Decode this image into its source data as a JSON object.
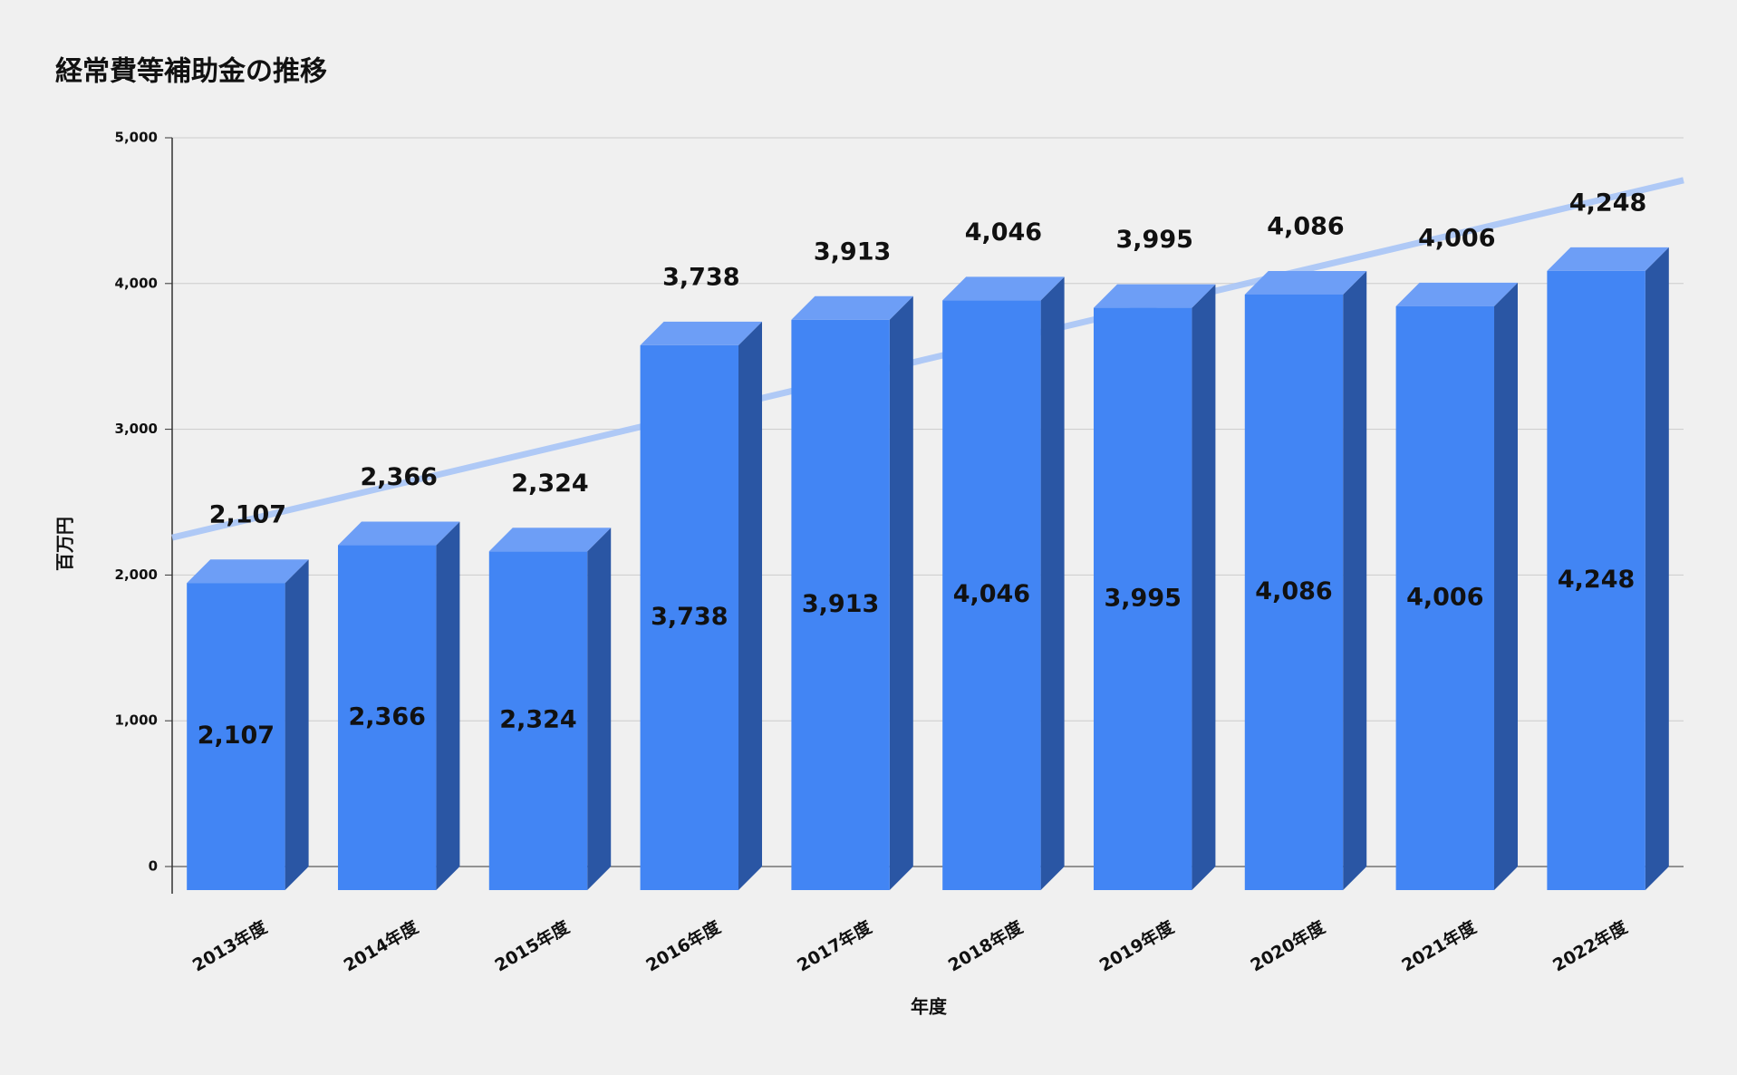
{
  "chart_data": {
    "type": "bar3d",
    "title": "経常費等補助金の推移",
    "x_label": "年度",
    "y_label": "百万円",
    "categories": [
      "2013年度",
      "2014年度",
      "2015年度",
      "2016年度",
      "2017年度",
      "2018年度",
      "2019年度",
      "2020年度",
      "2021年度",
      "2022年度"
    ],
    "values": [
      2107,
      2366,
      2324,
      3738,
      3913,
      4046,
      3995,
      4086,
      4006,
      4248
    ],
    "value_labels": [
      "2,107",
      "2,366",
      "2,324",
      "3,738",
      "3,913",
      "4,046",
      "3,995",
      "4,086",
      "4,006",
      "4,248"
    ],
    "color": "#4285f4",
    "trendline": true,
    "ylim": [
      0,
      5000
    ],
    "yticks": [
      0,
      {
        "value": 1000,
        "label": "1,000"
      },
      {
        "value": 2000,
        "label": "2,000"
      },
      {
        "value": 3000,
        "label": "3,000"
      },
      {
        "value": 4000,
        "label": "4,000"
      },
      {
        "value": 5000,
        "label": "5,000"
      }
    ],
    "grid": true
  }
}
